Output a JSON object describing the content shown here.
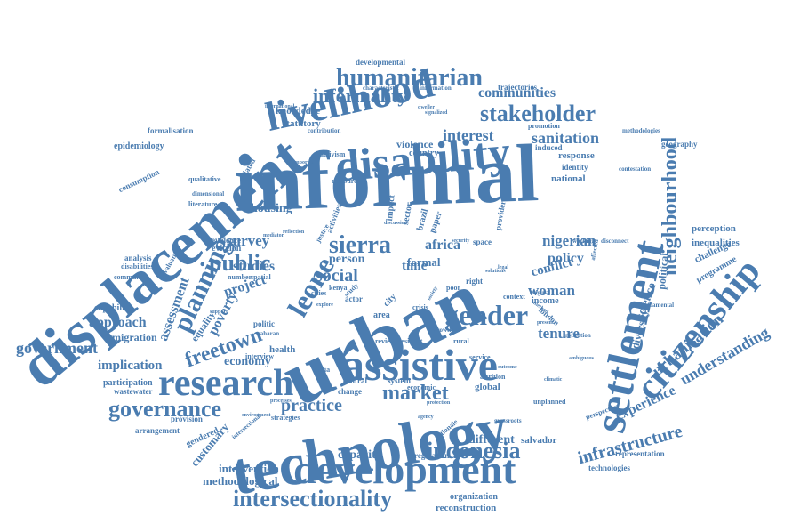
{
  "words": [
    "informal",
    "displacement",
    "urban",
    "technology",
    "assistive",
    "development",
    "settlement",
    "citizenship",
    "disability",
    "livelihood",
    "research",
    "intersectionality",
    "indonesia",
    "gender",
    "humanitarian",
    "stakeholder",
    "informality",
    "sierra",
    "leone",
    "planning",
    "public",
    "governance",
    "government",
    "practice",
    "freetown",
    "market",
    "neighbourhood",
    "infrastructure",
    "urbanisation",
    "understanding",
    "experience",
    "social",
    "sanitation",
    "interest",
    "communities",
    "poverty",
    "assessment",
    "approach",
    "woman",
    "economy",
    "implication",
    "survey",
    "studies",
    "project",
    "tenure",
    "nigerian",
    "policy",
    "africa",
    "formal",
    "person",
    "time",
    "conflict",
    "housing",
    "customary",
    "intervention",
    "methodological",
    "capacity",
    "different",
    "salvador",
    "representation",
    "technologies",
    "reconstruction",
    "organization",
    "migration",
    "capability",
    "equality",
    "science",
    "political",
    "diversity",
    "perception",
    "inequalities",
    "challenge",
    "programme",
    "response",
    "national",
    "violence",
    "country",
    "knowledge",
    "statutory",
    "developmental",
    "trajectories",
    "epidemiology",
    "consumption",
    "formalisation",
    "related",
    "eviction",
    "analysis",
    "participation",
    "wastewater",
    "provision",
    "arrangement",
    "gendered",
    "global",
    "health",
    "income",
    "london",
    "system",
    "central",
    "change",
    "strategies",
    "regulation",
    "rationale",
    "geography",
    "contestation",
    "methodologies",
    "identity",
    "induced",
    "promotion",
    "information",
    "characteristic",
    "evidence",
    "literature",
    "qualitative",
    "dimensional",
    "community",
    "disabilities",
    "evaluation",
    "number",
    "spatial",
    "interview",
    "bahia",
    "review",
    "resident",
    "growth",
    "rural",
    "space",
    "right",
    "poor",
    "kenya",
    "cities",
    "actor",
    "study",
    "area",
    "city",
    "crisis",
    "politic",
    "saharan",
    "measure",
    "activism",
    "impact",
    "sector",
    "brazil",
    "paper",
    "provider",
    "service",
    "attrition",
    "economic",
    "justice",
    "context",
    "original",
    "working",
    "disconnect",
    "unplanned",
    "perspective",
    "fundamental",
    "institution",
    "affected",
    "ambiguous",
    "climatic",
    "grassroots",
    "protection",
    "intersectional",
    "environment",
    "processes",
    "activities",
    "international",
    "contribution",
    "important",
    "signalized",
    "security",
    "present",
    "method",
    "solutions",
    "reflection",
    "mediator",
    "discussion",
    "explore",
    "support",
    "dweller",
    "legal",
    "society",
    "outcome",
    "agency"
  ]
}
